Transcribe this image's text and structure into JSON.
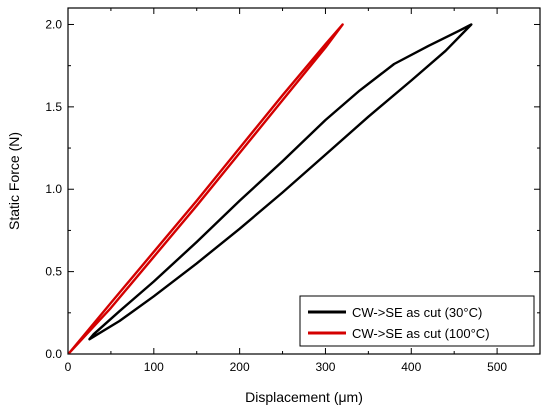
{
  "chart_data": {
    "type": "line",
    "xlabel": "Displacement (μm)",
    "ylabel": "Static Force (N)",
    "xlim": [
      0,
      550
    ],
    "ylim": [
      0,
      2.1
    ],
    "xticks": [
      "0",
      "100",
      "200",
      "300",
      "400",
      "500"
    ],
    "yticks": [
      "0.0",
      "0.5",
      "1.0",
      "1.5",
      "2.0"
    ],
    "grid": false,
    "legend_position": "bottom-right",
    "series": [
      {
        "name": "CW->SE as cut (30°C)",
        "color": "#000000",
        "points": [
          [
            25,
            0.09
          ],
          [
            60,
            0.2
          ],
          [
            100,
            0.35
          ],
          [
            150,
            0.55
          ],
          [
            200,
            0.76
          ],
          [
            250,
            0.98
          ],
          [
            300,
            1.21
          ],
          [
            350,
            1.44
          ],
          [
            400,
            1.66
          ],
          [
            440,
            1.84
          ],
          [
            470,
            2.0
          ],
          [
            455,
            1.96
          ],
          [
            420,
            1.87
          ],
          [
            380,
            1.76
          ],
          [
            340,
            1.6
          ],
          [
            300,
            1.42
          ],
          [
            250,
            1.17
          ],
          [
            200,
            0.93
          ],
          [
            150,
            0.68
          ],
          [
            100,
            0.44
          ],
          [
            60,
            0.26
          ],
          [
            30,
            0.12
          ],
          [
            25,
            0.09
          ]
        ]
      },
      {
        "name": "CW->SE as cut (100°C)",
        "color": "#d40000",
        "points": [
          [
            2,
            0.01
          ],
          [
            50,
            0.28
          ],
          [
            100,
            0.59
          ],
          [
            150,
            0.9
          ],
          [
            200,
            1.22
          ],
          [
            250,
            1.54
          ],
          [
            300,
            1.86
          ],
          [
            320,
            2.0
          ],
          [
            300,
            1.88
          ],
          [
            250,
            1.57
          ],
          [
            200,
            1.25
          ],
          [
            150,
            0.93
          ],
          [
            100,
            0.62
          ],
          [
            50,
            0.31
          ],
          [
            2,
            0.01
          ]
        ]
      }
    ]
  }
}
